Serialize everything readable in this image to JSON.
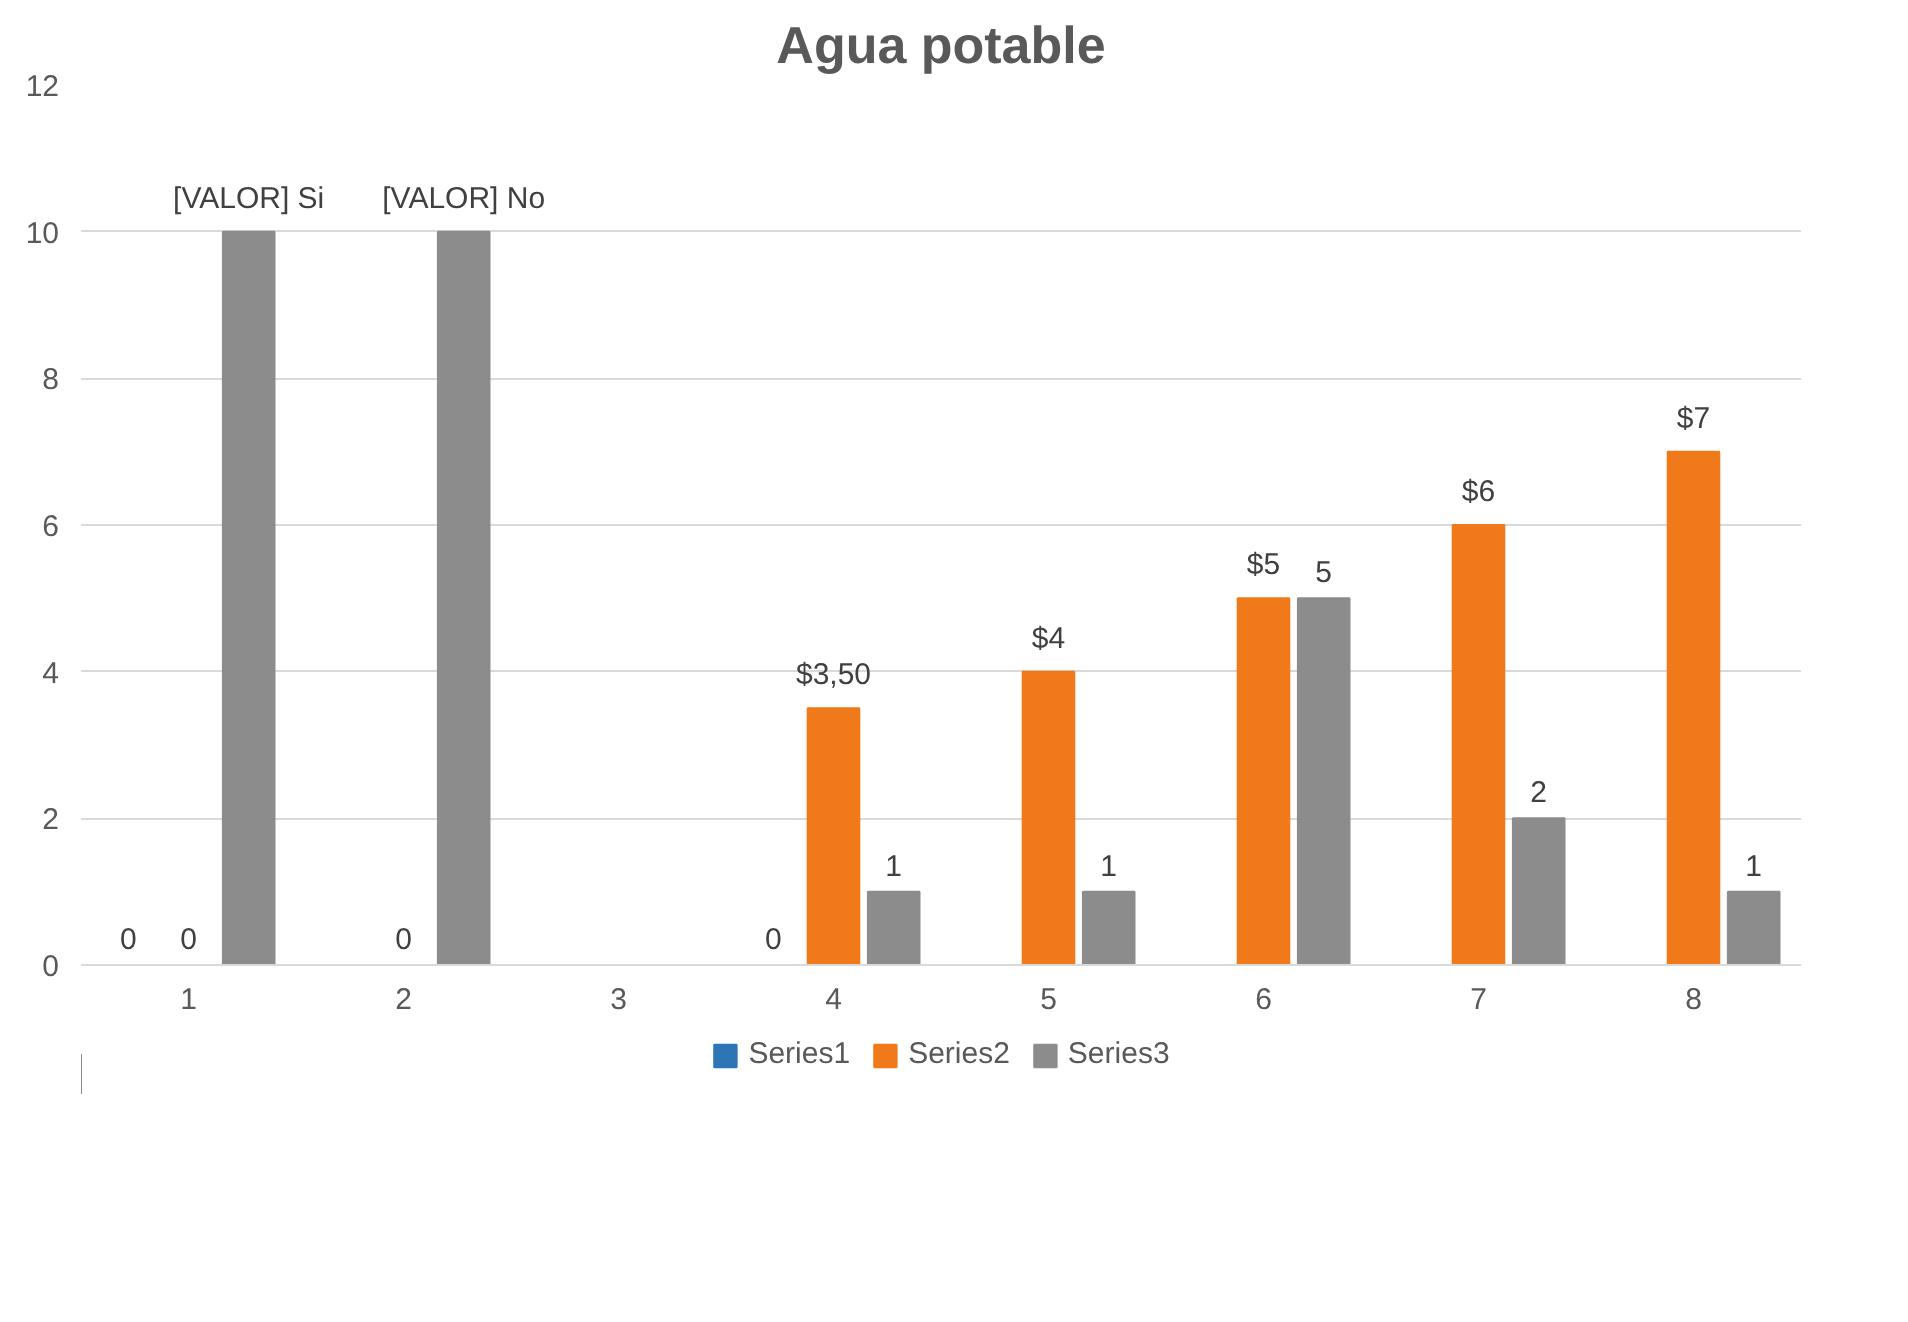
{
  "chart_data": {
    "type": "bar",
    "title": "Agua potable",
    "categories": [
      "1",
      "2",
      "3",
      "4",
      "5",
      "6",
      "7",
      "8"
    ],
    "series": [
      {
        "name": "Series1",
        "color": "#2e75b6",
        "values": [
          0,
          null,
          null,
          0,
          null,
          null,
          null,
          null
        ],
        "value_labels": [
          "0",
          null,
          null,
          "0",
          null,
          null,
          null,
          null
        ]
      },
      {
        "name": "Series2",
        "color": "#f07a1a",
        "values": [
          0,
          0,
          null,
          3.5,
          4,
          5,
          6,
          7
        ],
        "value_labels": [
          "0",
          "0",
          null,
          "$3,50",
          "$4",
          "$5",
          "$6",
          "$7"
        ]
      },
      {
        "name": "Series3",
        "color": "#8c8c8c",
        "values": [
          10,
          10,
          null,
          1,
          1,
          5,
          2,
          1
        ],
        "value_labels": [
          "[VALOR] Si",
          "[VALOR] No",
          null,
          "1",
          "1",
          "5",
          "2",
          "1"
        ]
      }
    ],
    "ylim": [
      0,
      12
    ],
    "yticks": [
      0,
      2,
      4,
      6,
      8,
      10,
      12
    ],
    "grid": "y",
    "legend": "bottom"
  }
}
